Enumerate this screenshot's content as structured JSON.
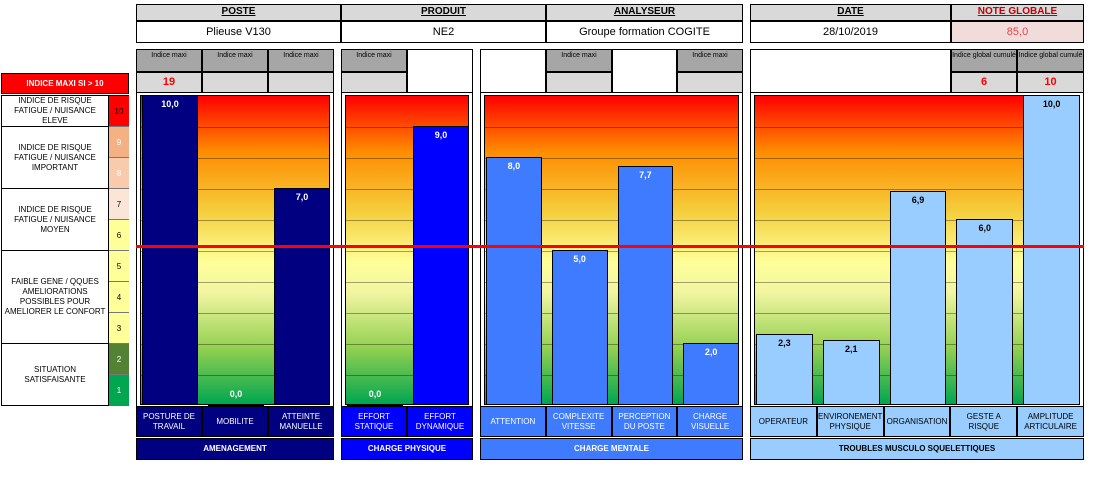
{
  "header": {
    "poste": {
      "label": "POSTE",
      "value": "Plieuse V130"
    },
    "produit": {
      "label": "PRODUIT",
      "value": "NE2"
    },
    "analyseur": {
      "label": "ANALYSEUR",
      "value": "Groupe formation COGITE"
    },
    "date": {
      "label": "DATE",
      "value": "28/10/2019"
    },
    "note": {
      "label": "NOTE GLOBALE",
      "value": "85,0"
    }
  },
  "indice_maxi_label": "INDICE MAXI SI > 10",
  "sub_headers": {
    "indice_maxi": "Indice maxi",
    "indice_global_cumule": "Indice global cumulé"
  },
  "sub_values": {
    "amenagement": "19",
    "global1": "6",
    "global2": "10"
  },
  "risk_levels": [
    {
      "label": "INDICE DE RISQUE FATIGUE / NUISANCE ELEVE",
      "color": "#ff0000"
    },
    {
      "label": "INDICE DE RISQUE FATIGUE / NUISANCE IMPORTANT",
      "color": "#f4b183"
    },
    {
      "label": "INDICE DE RISQUE FATIGUE / NUISANCE MOYEN",
      "color": "#f8cbad"
    },
    {
      "label": "FAIBLE GENE / QQUES AMELIORATIONS POSSIBLES POUR AMELIORER LE CONFORT",
      "color": "#ffff99"
    },
    {
      "label": "SITUATION SATISFAISANTE",
      "color": "#00a650"
    }
  ],
  "scale_numbers": [
    "10",
    "9",
    "8",
    "7",
    "6",
    "5",
    "4",
    "3",
    "2",
    "1"
  ],
  "chart_data": {
    "type": "bar",
    "ylim": [
      0,
      10
    ],
    "threshold": 5,
    "groups": [
      {
        "name": "AMENAGEMENT",
        "color": "#000080",
        "categories": [
          "POSTURE DE TRAVAIL",
          "MOBILITE",
          "ATTEINTE MANUELLE"
        ],
        "values": [
          10.0,
          0.0,
          7.0
        ],
        "labels": [
          "10,0",
          "0,0",
          "7,0"
        ]
      },
      {
        "name": "CHARGE PHYSIQUE",
        "color": "#0000ff",
        "categories": [
          "EFFORT STATIQUE",
          "EFFORT DYNAMIQUE"
        ],
        "values": [
          0.0,
          9.0
        ],
        "labels": [
          "0,0",
          "9,0"
        ]
      },
      {
        "name": "CHARGE MENTALE",
        "color": "#3e7bff",
        "categories": [
          "ATTENTION",
          "COMPLEXITE VITESSE",
          "PERCEPTION DU POSTE",
          "CHARGE VISUELLE"
        ],
        "values": [
          8.0,
          5.0,
          7.7,
          2.0
        ],
        "labels": [
          "8,0",
          "5,0",
          "7,7",
          "2,0"
        ]
      },
      {
        "name": "TROUBLES MUSCULO SQUELETTIQUES",
        "color": "#99ccff",
        "categories": [
          "OPERATEUR",
          "ENVIRONEMENT PHYSIQUE",
          "ORGANISATION",
          "GESTE A RISQUE",
          "AMPLITUDE ARTICULAIRE"
        ],
        "values": [
          2.3,
          2.1,
          6.9,
          6.0,
          10.0
        ],
        "labels": [
          "2,3",
          "2,1",
          "6,9",
          "6,0",
          "10,0"
        ]
      }
    ]
  }
}
